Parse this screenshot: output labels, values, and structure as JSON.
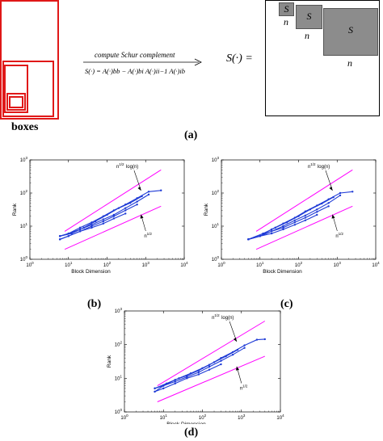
{
  "top": {
    "boxes_label": "boxes",
    "arrow_top_text": "compute Schur complement",
    "arrow_bottom_text": "S(·) = A(·)bb − A(·)bi A(·)ii−1 A(·)ib",
    "s_eq": "S(·) =",
    "squares": [
      {
        "label": "S",
        "n": "n"
      },
      {
        "label": "S",
        "n": "n"
      },
      {
        "label": "S",
        "n": "n"
      }
    ],
    "caption": "(a)"
  },
  "panels": [
    {
      "caption": "(b)"
    },
    {
      "caption": "(c)"
    },
    {
      "caption": "(d)"
    }
  ],
  "chart_data": [
    {
      "type": "line",
      "xlabel": "Block Dimension",
      "ylabel": "Rank",
      "xscale": "log",
      "yscale": "log",
      "xlim": [
        1,
        10000
      ],
      "ylim": [
        1,
        1000
      ],
      "x_ticks": [
        "10^0",
        "10^1",
        "10^2",
        "10^3",
        "10^4"
      ],
      "y_ticks": [
        "10^0",
        "10^1",
        "10^2",
        "10^3"
      ],
      "annotations": [
        "n^1/2 log(n)",
        "n^1/2"
      ],
      "series": [
        {
          "color": "#ff00ff",
          "x": [
            8,
            2500
          ],
          "y": [
            7,
            500
          ]
        },
        {
          "color": "#ff00ff",
          "x": [
            8,
            2500
          ],
          "y": [
            2,
            40
          ]
        },
        {
          "color": "#1f3bd6",
          "x": [
            6,
            10,
            20,
            40,
            80,
            150,
            300,
            600,
            1200,
            2500
          ],
          "y": [
            5,
            6,
            9,
            13,
            20,
            30,
            45,
            70,
            110,
            120
          ]
        },
        {
          "color": "#1f3bd6",
          "x": [
            6,
            10,
            20,
            40,
            80,
            150,
            300,
            600,
            1200
          ],
          "y": [
            5,
            6,
            8,
            11,
            16,
            22,
            35,
            55,
            90
          ]
        },
        {
          "color": "#1f3bd6",
          "x": [
            6,
            10,
            20,
            40,
            80,
            150,
            300,
            600
          ],
          "y": [
            4,
            5,
            7,
            10,
            14,
            20,
            30,
            45
          ]
        },
        {
          "color": "#1f3bd6",
          "x": [
            6,
            10,
            20,
            40,
            80,
            150,
            300
          ],
          "y": [
            4,
            5,
            7,
            9,
            12,
            17,
            24
          ]
        },
        {
          "color": "#1f3bd6",
          "x": [
            6,
            12,
            25,
            50,
            100,
            200,
            400,
            800
          ],
          "y": [
            5,
            6,
            9,
            14,
            22,
            35,
            50,
            80
          ]
        }
      ]
    },
    {
      "type": "line",
      "xlabel": "Block Dimension",
      "ylabel": "Rank",
      "xscale": "log",
      "yscale": "log",
      "xlim": [
        1,
        10000
      ],
      "ylim": [
        1,
        1000
      ],
      "x_ticks": [
        "10^0",
        "10^1",
        "10^2",
        "10^3",
        "10^4"
      ],
      "y_ticks": [
        "10^0",
        "10^1",
        "10^2",
        "10^3"
      ],
      "annotations": [
        "n^1/2 log(n)",
        "n^1/2"
      ],
      "series": [
        {
          "color": "#ff00ff",
          "x": [
            8,
            2500
          ],
          "y": [
            7,
            500
          ]
        },
        {
          "color": "#ff00ff",
          "x": [
            8,
            2500
          ],
          "y": [
            2,
            40
          ]
        },
        {
          "color": "#1f3bd6",
          "x": [
            5,
            10,
            20,
            40,
            80,
            150,
            300,
            600,
            1200,
            2500
          ],
          "y": [
            4,
            5,
            8,
            12,
            18,
            28,
            42,
            65,
            100,
            110
          ]
        },
        {
          "color": "#1f3bd6",
          "x": [
            5,
            10,
            20,
            40,
            80,
            150,
            300,
            600,
            1200
          ],
          "y": [
            4,
            5,
            7,
            10,
            15,
            21,
            32,
            50,
            85
          ]
        },
        {
          "color": "#1f3bd6",
          "x": [
            5,
            10,
            20,
            40,
            80,
            150,
            300,
            600
          ],
          "y": [
            4,
            5,
            7,
            9,
            13,
            18,
            27,
            40
          ]
        },
        {
          "color": "#1f3bd6",
          "x": [
            5,
            10,
            20,
            40,
            80,
            150,
            300
          ],
          "y": [
            4,
            5,
            6,
            8,
            11,
            15,
            22
          ]
        },
        {
          "color": "#1f3bd6",
          "x": [
            5,
            12,
            25,
            50,
            100,
            200,
            400,
            800
          ],
          "y": [
            4,
            6,
            9,
            13,
            20,
            32,
            48,
            75
          ]
        }
      ]
    },
    {
      "type": "line",
      "xlabel": "Block Dimension",
      "ylabel": "Rank",
      "xscale": "log",
      "yscale": "log",
      "xlim": [
        1,
        10000
      ],
      "ylim": [
        1,
        1000
      ],
      "x_ticks": [
        "10^0",
        "10^1",
        "10^2",
        "10^3",
        "10^4"
      ],
      "y_ticks": [
        "10^0",
        "10^1",
        "10^2",
        "10^3"
      ],
      "annotations": [
        "n^1/2 log(n)",
        "n^1/2"
      ],
      "series": [
        {
          "color": "#ff00ff",
          "x": [
            7,
            4000
          ],
          "y": [
            6,
            500
          ]
        },
        {
          "color": "#ff00ff",
          "x": [
            7,
            4000
          ],
          "y": [
            2,
            45
          ]
        },
        {
          "color": "#1f3bd6",
          "x": [
            6,
            10,
            20,
            40,
            80,
            150,
            300,
            600,
            1200,
            2500,
            4000
          ],
          "y": [
            5,
            6,
            9,
            12,
            17,
            25,
            40,
            60,
            95,
            140,
            145
          ]
        },
        {
          "color": "#1f3bd6",
          "x": [
            6,
            10,
            20,
            40,
            80,
            150,
            300,
            600,
            1200
          ],
          "y": [
            4,
            6,
            8,
            11,
            15,
            22,
            33,
            50,
            80
          ]
        },
        {
          "color": "#1f3bd6",
          "x": [
            6,
            10,
            20,
            40,
            80,
            150,
            300
          ],
          "y": [
            4,
            5,
            7,
            10,
            13,
            18,
            26
          ]
        },
        {
          "color": "#1f3bd6",
          "x": [
            6,
            12,
            25,
            50,
            100,
            200,
            400,
            800
          ],
          "y": [
            5,
            7,
            10,
            14,
            20,
            30,
            45,
            70
          ]
        }
      ]
    }
  ]
}
